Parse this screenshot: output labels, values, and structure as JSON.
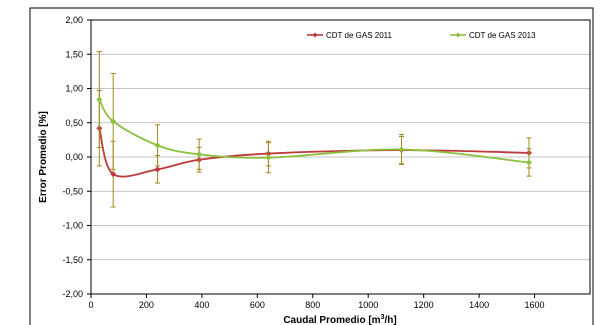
{
  "chart_data": {
    "type": "line",
    "xlabel": "Caudal Promedio [m3/h]",
    "xlabel_base": "Caudal Promedio [m",
    "xlabel_sup": "3",
    "xlabel_tail": "/h]",
    "ylabel": "Error Promedio [%]",
    "xlim": [
      0,
      1800
    ],
    "ylim": [
      -2.0,
      2.0
    ],
    "xticks": [
      "0",
      "200",
      "400",
      "600",
      "800",
      "1000",
      "1200",
      "1400",
      "1600"
    ],
    "yticks": [
      "2,00",
      "1,50",
      "1,00",
      "0,50",
      "0,00",
      "-0,50",
      "-1,00",
      "-1,50",
      "-2,00"
    ],
    "grid": "horizontal",
    "legend_position": "top",
    "series": [
      {
        "name": "CDT de GAS 2011",
        "color": "#c0393b",
        "x": [
          30,
          80,
          240,
          390,
          640,
          1120,
          1580
        ],
        "y": [
          0.42,
          -0.25,
          -0.18,
          -0.04,
          0.05,
          0.1,
          0.06
        ],
        "err": [
          0.55,
          0.48,
          0.2,
          0.18,
          0.18,
          0.2,
          0.22
        ]
      },
      {
        "name": "CDT de GAS 2013",
        "color": "#8cbf3f",
        "x": [
          30,
          80,
          240,
          390,
          640,
          1120,
          1580
        ],
        "y": [
          0.84,
          0.52,
          0.17,
          0.04,
          -0.01,
          0.11,
          -0.08
        ],
        "err": [
          0.7,
          0.7,
          0.3,
          0.22,
          0.22,
          0.22,
          0.2
        ]
      }
    ]
  }
}
